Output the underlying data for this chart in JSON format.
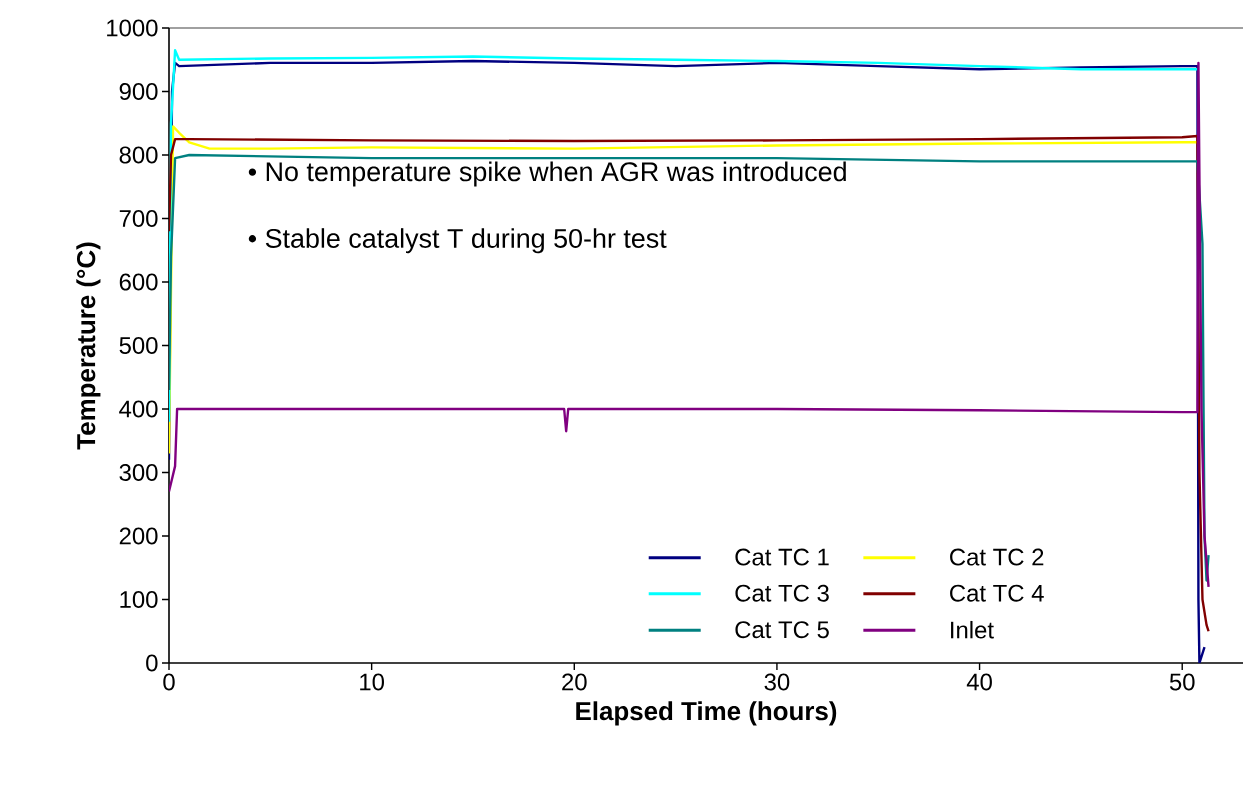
{
  "chart_data": {
    "type": "line",
    "xlabel": "Elapsed Time (hours)",
    "ylabel": "Temperature (°C)",
    "xlim": [
      0,
      53
    ],
    "xticks": [
      0,
      10,
      20,
      30,
      40,
      50
    ],
    "ylim": [
      0,
      1000
    ],
    "yticks": [
      0,
      100,
      200,
      300,
      400,
      500,
      600,
      700,
      800,
      900,
      1000
    ],
    "grid": false,
    "legend": "bottom right",
    "marker": "none",
    "line_style": "solid",
    "annotations": [
      "• No temperature spike when AGR was introduced",
      "• Stable catalyst T during 50-hr test"
    ],
    "series": [
      {
        "name": "Cat TC 1",
        "color": "#000080",
        "x": [
          0,
          0.15,
          0.3,
          0.5,
          5,
          10,
          15,
          20,
          25,
          30,
          35,
          40,
          45,
          50,
          50.75,
          50.8,
          50.85,
          51.1
        ],
        "values": [
          320,
          900,
          945,
          940,
          945,
          945,
          948,
          945,
          940,
          945,
          940,
          935,
          938,
          940,
          940,
          100,
          0,
          25
        ]
      },
      {
        "name": "Cat TC 2",
        "color": "#ffff00",
        "x": [
          0,
          0.2,
          0.5,
          1,
          2,
          5,
          10,
          20,
          30,
          40,
          50,
          50.75
        ],
        "values": [
          330,
          845,
          835,
          820,
          810,
          810,
          812,
          810,
          815,
          818,
          820,
          820
        ]
      },
      {
        "name": "Cat TC 3",
        "color": "#00ffff",
        "x": [
          0,
          0.1,
          0.3,
          0.5,
          5,
          10,
          15,
          20,
          25,
          30,
          35,
          40,
          45,
          50,
          50.75
        ],
        "values": [
          380,
          850,
          965,
          950,
          952,
          953,
          955,
          952,
          950,
          948,
          945,
          940,
          935,
          935,
          935
        ]
      },
      {
        "name": "Cat TC 4",
        "color": "#800000",
        "x": [
          0,
          0.1,
          0.3,
          1,
          10,
          20,
          30,
          40,
          50,
          50.75,
          50.85,
          51.0,
          51.2,
          51.3
        ],
        "values": [
          680,
          800,
          825,
          825,
          823,
          822,
          823,
          825,
          828,
          830,
          300,
          100,
          60,
          50
        ]
      },
      {
        "name": "Cat TC 5",
        "color": "#008080",
        "x": [
          0,
          0.1,
          0.3,
          1,
          10,
          20,
          30,
          40,
          50,
          50.75,
          51.0,
          51.05,
          51.1,
          51.2,
          51.3
        ],
        "values": [
          430,
          640,
          795,
          800,
          795,
          795,
          795,
          790,
          790,
          790,
          660,
          410,
          200,
          130,
          170
        ]
      },
      {
        "name": "Inlet",
        "color": "#800080",
        "x": [
          0,
          0.3,
          0.4,
          5,
          10,
          19.5,
          19.6,
          19.7,
          30,
          40,
          50,
          50.75,
          50.8,
          50.95,
          51.1,
          51.3
        ],
        "values": [
          270,
          310,
          400,
          400,
          400,
          400,
          365,
          400,
          400,
          398,
          395,
          395,
          945,
          400,
          200,
          120
        ]
      }
    ]
  }
}
